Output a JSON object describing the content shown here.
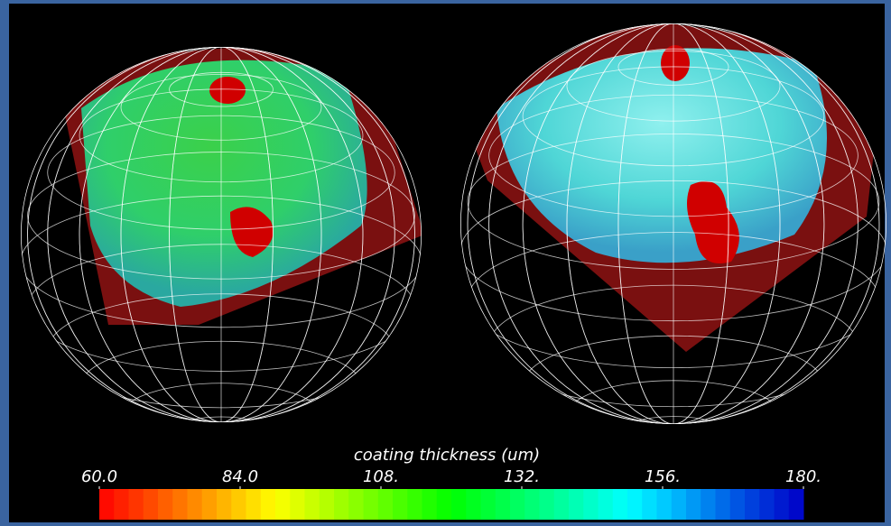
{
  "colorbar": {
    "title": "coating thickness (um)",
    "lim": [
      60,
      180
    ],
    "ticks": [
      {
        "value": 60,
        "label": "60.0"
      },
      {
        "value": 84,
        "label": "84.0"
      },
      {
        "value": 108,
        "label": "108."
      },
      {
        "value": 132,
        "label": "132."
      },
      {
        "value": 156,
        "label": "156."
      },
      {
        "value": 180,
        "label": "180."
      }
    ]
  }
}
